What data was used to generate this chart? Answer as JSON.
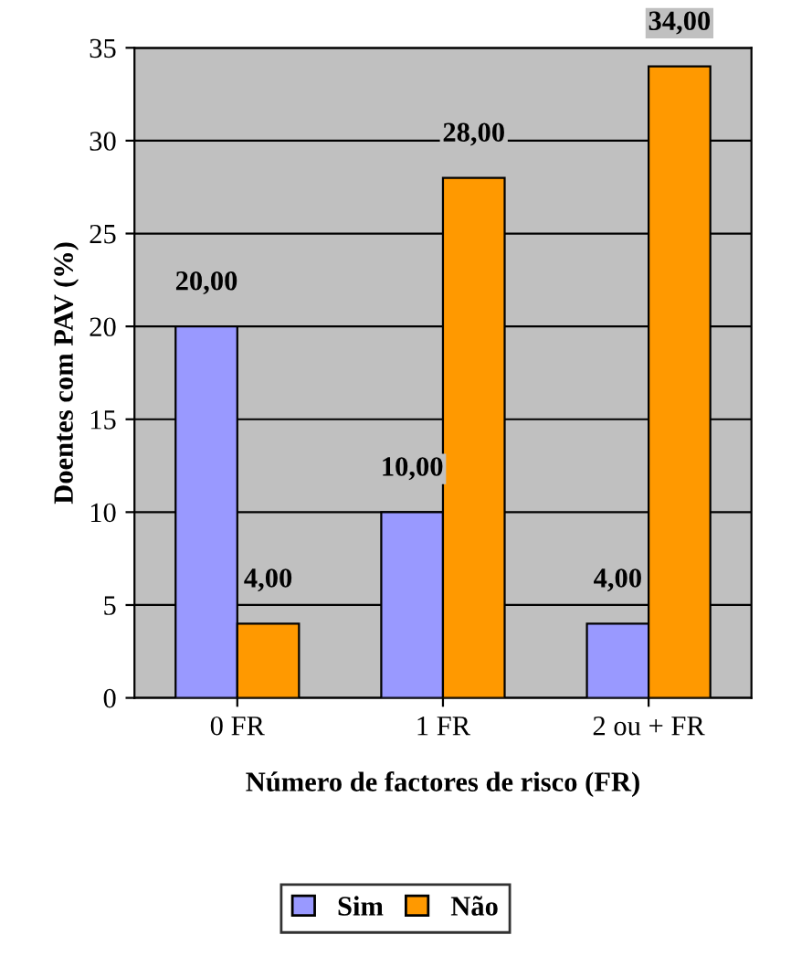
{
  "chart_data": {
    "type": "bar",
    "xlabel": "Número de factores de risco (FR)",
    "ylabel": "Doentes com PAV (%)",
    "categories": [
      "0 FR",
      "1 FR",
      "2 ou + FR"
    ],
    "series": [
      {
        "name": "Sim",
        "color": "#9999ff",
        "values": [
          20,
          10,
          4
        ],
        "value_labels": [
          "20,00",
          "10,00",
          "4,00"
        ]
      },
      {
        "name": "Não",
        "color": "#ff9900",
        "values": [
          4,
          28,
          34
        ],
        "value_labels": [
          "4,00",
          "28,00",
          "34,00"
        ]
      }
    ],
    "ylim": [
      0,
      35
    ],
    "yticks": [
      0,
      5,
      10,
      15,
      20,
      25,
      30,
      35
    ],
    "grid": "y",
    "legend": "bottom"
  }
}
